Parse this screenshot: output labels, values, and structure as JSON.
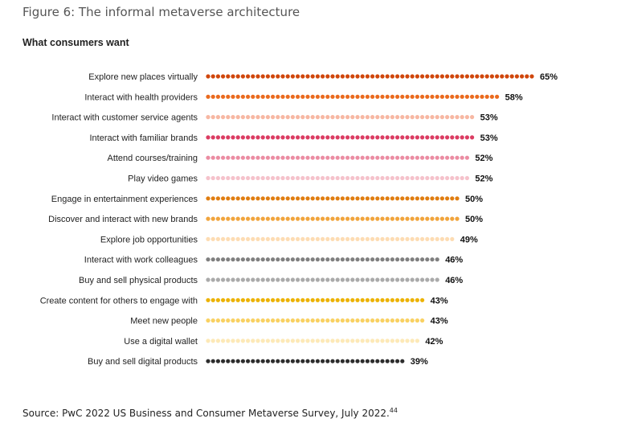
{
  "figure_title": "Figure 6: The informal metaverse architecture",
  "source": {
    "text": "Source: PwC 2022 US Business and Consumer Metaverse Survey, July 2022.",
    "footnote": "44"
  },
  "chart_data": {
    "type": "bar",
    "subtitle": "What consumers want",
    "value_suffix": "%",
    "xlim": [
      0,
      65
    ],
    "categories": [
      "Explore new places virtually",
      "Interact with health providers",
      "Interact with customer service agents",
      "Interact with familiar brands",
      "Attend courses/training",
      "Play video games",
      "Engage in entertainment experiences",
      "Discover and interact with new brands",
      "Explore job opportunities",
      "Interact with work colleagues",
      "Buy and sell physical products",
      "Create content for others to engage with",
      "Meet new people",
      "Use a digital wallet",
      "Buy and sell digital products"
    ],
    "values": [
      65,
      58,
      53,
      53,
      52,
      52,
      50,
      50,
      49,
      46,
      46,
      43,
      43,
      42,
      39
    ],
    "value_labels": [
      "65%",
      "58%",
      "53%",
      "53%",
      "52%",
      "52%",
      "50%",
      "50%",
      "49%",
      "46%",
      "46%",
      "43%",
      "43%",
      "42%",
      "39%"
    ],
    "colors": [
      "#d0460b",
      "#ea6a1e",
      "#f7b7a2",
      "#db3c62",
      "#eb8ca2",
      "#f5c2cb",
      "#e07d10",
      "#f1a43c",
      "#fddcb3",
      "#7f7f7f",
      "#aaaaaa",
      "#ecb200",
      "#f9d162",
      "#fde9b7",
      "#2d2d2d"
    ]
  }
}
